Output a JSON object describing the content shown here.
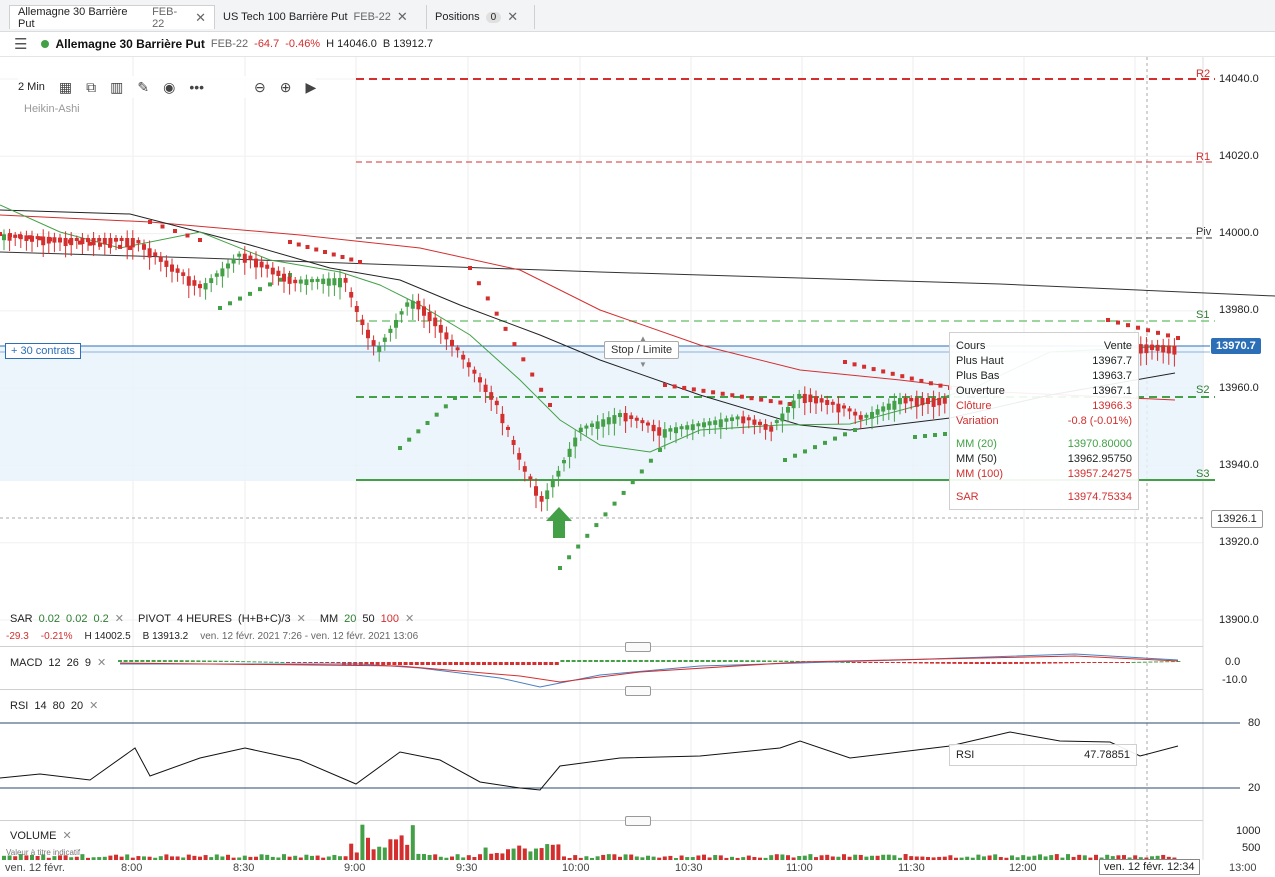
{
  "tabs": [
    {
      "name": "Allemagne 30 Barrière Put",
      "sub": "FEB-22",
      "close": "✕"
    },
    {
      "name": "US Tech 100 Barrière Put",
      "sub": "FEB-22",
      "close": "✕"
    },
    {
      "name": "Positions",
      "badge": "0",
      "close": "✕"
    }
  ],
  "header": {
    "menu_icon": "hamburger-icon",
    "name": "Allemagne 30 Barrière Put",
    "expiry": "FEB-22",
    "change": "-64.7",
    "change_pct": "-0.46%",
    "high": "H 14046.0",
    "low": "B 13912.7"
  },
  "toolbar": {
    "interval": "2 Min",
    "chart_type": "Heikin-Ashi",
    "icons": [
      "candle-style-icon",
      "compare-icon",
      "indicators-icon",
      "draw-icon",
      "visibility-icon",
      "more-icon",
      "zoom-out-icon",
      "zoom-in-icon",
      "play-icon"
    ]
  },
  "price_axis": [
    "14040.0",
    "14020.0",
    "14000.0",
    "13980.0",
    "13960.0",
    "13940.0",
    "13920.0",
    "13900.0"
  ],
  "current_price": "13970.7",
  "crosshair_price": "13926.1",
  "pivots": {
    "R2": "R2",
    "R1": "R1",
    "Piv": "Piv",
    "S1": "S1",
    "S2": "S2",
    "S3": "S3"
  },
  "order_line": {
    "label": "+ 30 contrats",
    "stop_label": "Stop / Limite"
  },
  "tooltip": {
    "rows": [
      {
        "label": "Cours",
        "value": "Vente",
        "color": "#222"
      },
      {
        "label": "Plus Haut",
        "value": "13967.7",
        "color": "#222"
      },
      {
        "label": "Plus Bas",
        "value": "13963.7",
        "color": "#222"
      },
      {
        "label": "Ouverture",
        "value": "13967.1",
        "color": "#222"
      },
      {
        "label": "Clôture",
        "value": "13966.3",
        "color": "#d32f2f"
      },
      {
        "label": "Variation",
        "value": "-0.8 (-0.01%)",
        "color": "#d32f2f"
      }
    ],
    "ma_rows": [
      {
        "label": "MM (20)",
        "value": "13970.80000",
        "color": "#43a047"
      },
      {
        "label": "MM (50)",
        "value": "13962.95750",
        "color": "#222"
      },
      {
        "label": "MM (100)",
        "value": "13957.24275",
        "color": "#d32f2f"
      }
    ],
    "sar": {
      "label": "SAR",
      "value": "13974.75334",
      "color": "#d32f2f"
    }
  },
  "legend": {
    "sar_label": "SAR",
    "sar_p1": "0.02",
    "sar_p2": "0.02",
    "sar_p3": "0.2",
    "pivot_label": "PIVOT",
    "pivot_p": "4 HEURES",
    "pivot_f": "(H+B+C)/3",
    "mm_label": "MM",
    "mm1": "20",
    "mm2": "50",
    "mm3": "100",
    "close": "✕"
  },
  "summary": {
    "change": "-29.3",
    "pct": "-0.21%",
    "high": "H 14002.5",
    "low": "B 13913.2",
    "range": "ven. 12 févr. 2021 7:26 - ven. 12 févr. 2021 13:06"
  },
  "macd": {
    "label": "MACD",
    "p1": "12",
    "p2": "26",
    "p3": "9",
    "axis": [
      "0.0",
      "-10.0"
    ]
  },
  "rsi": {
    "label": "RSI",
    "p1": "14",
    "p2": "80",
    "p3": "20",
    "axis": [
      "80",
      "20"
    ],
    "box_label": "RSI",
    "box_value": "47.78851"
  },
  "volume": {
    "label": "VOLUME",
    "note": "Valeur à titre indicatif",
    "axis": [
      "1000",
      "500"
    ]
  },
  "time_axis": {
    "left_date": "ven. 12 févr.",
    "labels": [
      "8:00",
      "8:30",
      "9:00",
      "9:30",
      "10:00",
      "10:30",
      "11:00",
      "11:30",
      "12:00",
      "13:00"
    ],
    "cursor": "ven. 12 févr. 12:34"
  },
  "colors": {
    "up": "#43a047",
    "down": "#d32f2f",
    "accent": "#2c6fb7",
    "order_band": "#e8f2fb"
  }
}
